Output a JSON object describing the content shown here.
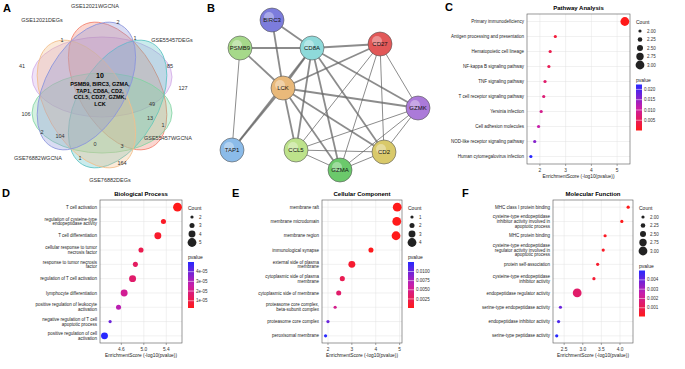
{
  "chart_data": [
    {
      "type": "venn",
      "label": "A",
      "sets": [
        {
          "name": "GSE12021WGCNA",
          "color": "#cfa8e6"
        },
        {
          "name": "GSE12021DEGs",
          "color": "#f3826f"
        },
        {
          "name": "GSE55457DEGs",
          "color": "#5fc3c4"
        },
        {
          "name": "GSE55457WGCNA",
          "color": "#7fd3a1"
        },
        {
          "name": "GSE76882DEGs",
          "color": "#f2bf8c"
        },
        {
          "name": "GSE76882WGCNA",
          "color": "#8b95dc"
        }
      ],
      "region_counts": [
        41,
        1,
        2,
        1,
        85,
        127,
        49,
        13,
        1,
        3,
        0,
        106,
        104,
        164,
        1,
        2
      ],
      "center_count": 10,
      "center_genes": [
        "PSMB9, BIRC3, GZMA,",
        "TAP1, CD8A, CD2,",
        "CCL5, CD27, GZMK,",
        "LCK"
      ]
    },
    {
      "type": "network",
      "label": "B",
      "nodes": [
        {
          "name": "BIRC3",
          "color": "#7c7cdc"
        },
        {
          "name": "CD27",
          "color": "#e25858"
        },
        {
          "name": "PSMB9",
          "color": "#a6d98a"
        },
        {
          "name": "CD8A",
          "color": "#8edada"
        },
        {
          "name": "LCK",
          "color": "#e9b97a"
        },
        {
          "name": "GZMK",
          "color": "#ab7ad9"
        },
        {
          "name": "TAP1",
          "color": "#8bbbe9"
        },
        {
          "name": "CD2",
          "color": "#d9c96a"
        },
        {
          "name": "CCL5",
          "color": "#bde28b"
        },
        {
          "name": "GZMA",
          "color": "#6bc96b"
        }
      ],
      "edges": [
        [
          2,
          6
        ],
        [
          2,
          4
        ],
        [
          2,
          3
        ],
        [
          0,
          4
        ],
        [
          0,
          3
        ],
        [
          3,
          4
        ],
        [
          3,
          1
        ],
        [
          3,
          5
        ],
        [
          3,
          7
        ],
        [
          3,
          9
        ],
        [
          3,
          8
        ],
        [
          1,
          4
        ],
        [
          1,
          7
        ],
        [
          1,
          5
        ],
        [
          1,
          9
        ],
        [
          1,
          8
        ],
        [
          4,
          7
        ],
        [
          4,
          9
        ],
        [
          4,
          8
        ],
        [
          4,
          5
        ],
        [
          4,
          6
        ],
        [
          5,
          9
        ],
        [
          5,
          7
        ],
        [
          5,
          8
        ],
        [
          7,
          9
        ],
        [
          7,
          8
        ],
        [
          8,
          9
        ],
        [
          6,
          3
        ]
      ]
    },
    {
      "type": "dot",
      "label": "C",
      "title": "Pathway Analysis",
      "x_label": "EnrichmentScore (-log10(pvalue))",
      "grid": true,
      "categories": [
        "Primary immunodeficiency",
        "Antigen processing and presentation",
        "Hematopoietic cell lineage",
        "NF-kappa B signaling pathway",
        "TNF signaling pathway",
        "T cell receptor signaling pathway",
        "Yersinia infection",
        "Cell adhesion molecules",
        "NOD-like receptor signaling pathway",
        "Human cytomegalovirus infection"
      ],
      "values": [
        5.3,
        2.6,
        2.4,
        2.35,
        2.2,
        2.15,
        2.05,
        1.95,
        1.8,
        1.65
      ],
      "counts": [
        3,
        2,
        2,
        2,
        2,
        2,
        2,
        2,
        2,
        2
      ],
      "pvalues": [
        5e-06,
        0.0025,
        0.004,
        0.0045,
        0.0063,
        0.0071,
        0.0089,
        0.0112,
        0.0158,
        0.0224
      ],
      "xlim": [
        1.5,
        5.5
      ],
      "xticks": [
        2,
        3,
        4,
        5
      ],
      "count_legend": {
        "title": "Count",
        "ticks": [
          {
            "value": 2,
            "label": "2.00"
          },
          {
            "value": 2.25,
            "label": "2.25"
          },
          {
            "value": 2.5,
            "label": "2.50"
          },
          {
            "value": 2.75,
            "label": "2.75"
          },
          {
            "value": 3,
            "label": "3.00"
          }
        ]
      },
      "color_bar": {
        "title": "pvalue",
        "range": [
          5e-06,
          0.0224
        ],
        "ticks": [
          {
            "value": 0.02,
            "label": "0.020"
          },
          0.015,
          {
            "value": 0.01,
            "label": "0.010"
          },
          0.005
        ]
      }
    },
    {
      "type": "dot",
      "label": "D",
      "title": "Biological Process",
      "x_label": "EnrichmentScore (-log10(pvalue))",
      "grid": true,
      "categories": [
        "T cell activation",
        "regulation of cysteine-type endopeptidase activity",
        "T cell differentiation",
        "cellular response to tumor necrosis factor",
        "response to tumor necrosis factor",
        "regulation of T cell activation",
        "lymphocyte differentiation",
        "positive regulation of leukocyte activation",
        "negative regulation of T cell apoptotic process",
        "positive regulation of cell activation"
      ],
      "values": [
        5.6,
        5.35,
        5.25,
        4.95,
        4.85,
        4.8,
        4.65,
        4.55,
        4.4,
        4.3
      ],
      "counts": [
        5,
        3,
        4,
        3,
        3,
        4,
        4,
        3,
        2,
        4
      ],
      "pvalues": [
        2.5e-06,
        4.5e-06,
        5.6e-06,
        1.12e-05,
        1.41e-05,
        1.58e-05,
        2.24e-05,
        2.82e-05,
        3.98e-05,
        5e-05
      ],
      "xlim": [
        4.22,
        5.68
      ],
      "xticks": [
        4.6,
        {
          "value": 5,
          "label": "5.0"
        },
        5.4
      ],
      "count_legend": {
        "title": "Count",
        "ticks": [
          2,
          3,
          4,
          5
        ]
      },
      "color_bar": {
        "title": "pvalue",
        "range": [
          2.5e-06,
          5e-05
        ],
        "ticks": [
          {
            "value": 4e-05,
            "label": "4e-05"
          },
          {
            "value": 3e-05,
            "label": "3e-05"
          },
          {
            "value": 2e-05,
            "label": "2e-05"
          },
          {
            "value": 1e-05,
            "label": "1e-05"
          }
        ]
      }
    },
    {
      "type": "dot",
      "label": "E",
      "title": "Cellular Component",
      "x_label": "EnrichmentScore (-log10(pvalue))",
      "grid": true,
      "categories": [
        "membrane raft",
        "membrane microdomain",
        "membrane region",
        "immunological synapse",
        "external side of plasma membrane",
        "cytoplasmic side of plasma membrane",
        "cytoplasmic side of membrane",
        "proteasome core complex, beta-subunit complex",
        "proteasome core complex",
        "peroxisomal membrane"
      ],
      "values": [
        4.9,
        4.88,
        4.85,
        3.8,
        3.0,
        2.6,
        2.45,
        2.3,
        2.0,
        1.9
      ],
      "counts": [
        4,
        4,
        4,
        2,
        3,
        2,
        2,
        1,
        1,
        1
      ],
      "pvalues": [
        1.26e-05,
        1.3e-05,
        1.4e-05,
        0.00016,
        0.001,
        0.0025,
        0.0035,
        0.005,
        0.01,
        0.0126
      ],
      "xlim": [
        1.75,
        5.1
      ],
      "xticks": [
        2,
        3,
        4,
        5
      ],
      "count_legend": {
        "title": "Count",
        "ticks": [
          1,
          2,
          3,
          4
        ]
      },
      "color_bar": {
        "title": "pvalue",
        "range": [
          1.26e-05,
          0.0126
        ],
        "ticks": [
          {
            "value": 0.01,
            "label": "0.0100"
          },
          0.0075,
          {
            "value": 0.005,
            "label": "0.0050"
          },
          0.0025
        ]
      }
    },
    {
      "type": "dot",
      "label": "F",
      "title": "Molecular Function",
      "x_label": "EnrichmentScore (-log10(pvalue))",
      "grid": true,
      "categories": [
        "MHC class I protein binding",
        "cysteine-type endopeptidase inhibitor activity involved in apoptotic process",
        "MHC protein binding",
        "cysteine-type endopeptidase regulator activity involved in apoptotic process",
        "protein self-association",
        "cysteine-type endopeptidase inhibitor activity",
        "endopeptidase regulator activity",
        "serine-type endopeptidase activity",
        "endopeptidase inhibitor activity",
        "serine-type peptidase activity"
      ],
      "values": [
        4.22,
        4.05,
        3.6,
        3.55,
        3.4,
        3.3,
        2.85,
        2.4,
        2.35,
        2.3
      ],
      "counts": [
        2,
        2,
        2,
        2,
        2,
        2,
        3,
        2,
        2,
        2
      ],
      "pvalues": [
        6e-05,
        8.9e-05,
        0.00025,
        0.00028,
        0.0004,
        0.0005,
        0.00141,
        0.00398,
        0.00447,
        0.00501
      ],
      "xlim": [
        2.2,
        4.35
      ],
      "xticks": [
        2.5,
        {
          "value": 3,
          "label": "3.0"
        },
        3.5,
        {
          "value": 4,
          "label": "4.0"
        }
      ],
      "count_legend": {
        "title": "Count",
        "ticks": [
          {
            "value": 2,
            "label": "2.00"
          },
          {
            "value": 2.25,
            "label": "2.25"
          },
          {
            "value": 2.5,
            "label": "2.50"
          },
          {
            "value": 2.75,
            "label": "2.75"
          },
          {
            "value": 3,
            "label": "3.00"
          }
        ]
      },
      "color_bar": {
        "title": "pvalue",
        "range": [
          6e-05,
          0.00501
        ],
        "ticks": [
          0.004,
          0.003,
          0.002,
          0.001
        ]
      }
    }
  ]
}
